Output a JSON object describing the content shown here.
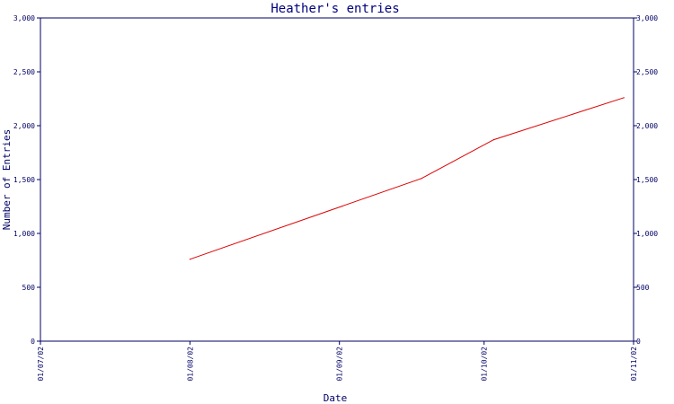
{
  "chart_data": {
    "type": "line",
    "title": "Heather's entries",
    "xlabel": "Date",
    "ylabel": "Number of Entries",
    "ylim": [
      0,
      3000
    ],
    "y_ticks": [
      {
        "value": 0,
        "label": "0"
      },
      {
        "value": 500,
        "label": "500"
      },
      {
        "value": 1000,
        "label": "1,000"
      },
      {
        "value": 1500,
        "label": "1,500"
      },
      {
        "value": 2000,
        "label": "2,000"
      },
      {
        "value": 2500,
        "label": "2,500"
      },
      {
        "value": 3000,
        "label": "3,000"
      }
    ],
    "x_range": [
      "2002-07-01",
      "2002-11-01"
    ],
    "x_ticks": [
      {
        "value": "2002-07-01",
        "label": "01/07/02"
      },
      {
        "value": "2002-08-01",
        "label": "01/08/02"
      },
      {
        "value": "2002-09-01",
        "label": "01/09/02"
      },
      {
        "value": "2002-10-01",
        "label": "01/10/02"
      },
      {
        "value": "2002-11-01",
        "label": "01/11/02"
      }
    ],
    "right_axis": true,
    "grid": false,
    "colors": {
      "axis": "#000066",
      "line": "#dd0000",
      "background": "#ffffff"
    },
    "series": [
      {
        "values": [
          {
            "x": "2002-08-01",
            "y": 760
          },
          {
            "x": "2002-09-18",
            "y": 1510
          },
          {
            "x": "2002-10-03",
            "y": 1870
          },
          {
            "x": "2002-10-30",
            "y": 2260
          }
        ]
      }
    ]
  }
}
